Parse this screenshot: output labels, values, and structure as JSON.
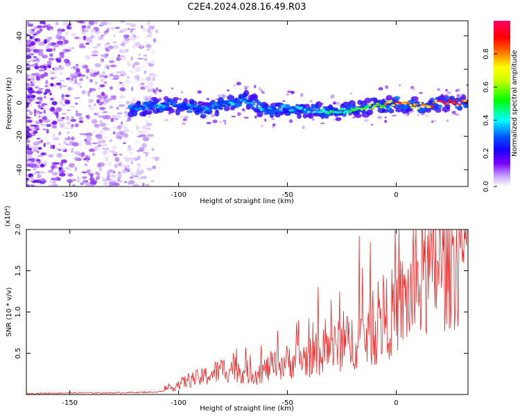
{
  "figure_title": "C2E4.2024.028.16.49.R03",
  "chart_data": [
    {
      "type": "heatmap",
      "title": "C2E4.2024.028.16.49.R03",
      "xlabel": "Height of straight line (km)",
      "ylabel": "Frequency (Hz)",
      "xlim": [
        -170,
        33
      ],
      "ylim": [
        -50,
        49
      ],
      "x_ticks": [
        -150,
        -100,
        -50,
        0
      ],
      "y_ticks": [
        -40,
        -20,
        0,
        20,
        40
      ],
      "x_tick_labels": [
        "-150",
        "-100",
        "-50",
        "0"
      ],
      "y_tick_labels": [
        "-40",
        "-20",
        "0",
        "20",
        "40"
      ],
      "colorbar": {
        "label": "Normalized spectral amplitude",
        "range": [
          0,
          1
        ],
        "ticks": [
          0.0,
          0.2,
          0.4,
          0.6,
          0.8
        ],
        "tick_labels": [
          "0.0",
          "0.2",
          "0.4",
          "0.6",
          "0.8"
        ],
        "colors": [
          "#ffffff",
          "#7a00ff",
          "#0000ff",
          "#00ffff",
          "#00ff00",
          "#ffff00",
          "#ff0000",
          "#ff0080"
        ]
      },
      "ridge": {
        "x": [
          -120,
          -110,
          -100,
          -90,
          -80,
          -70,
          -60,
          -50,
          -40,
          -30,
          -20,
          -10,
          0,
          10,
          20,
          33
        ],
        "y": [
          -3,
          -2,
          -1,
          -4,
          -2,
          2,
          -4,
          -3,
          -4,
          -6,
          -4,
          -2,
          0,
          -2,
          0,
          0
        ],
        "amplitude": [
          0.3,
          0.35,
          0.3,
          0.32,
          0.35,
          0.4,
          0.38,
          0.35,
          0.38,
          0.45,
          0.5,
          0.6,
          0.85,
          0.7,
          0.9,
          0.95
        ]
      },
      "noise_region_x": [
        -170,
        -110
      ]
    },
    {
      "type": "line",
      "title": "",
      "xlabel": "Height of straight line (km)",
      "ylabel": "SNR (10 * v/v)",
      "y_scale_label": "(x10⁴)",
      "xlim": [
        -170,
        33
      ],
      "ylim": [
        0,
        2.0
      ],
      "x_ticks": [
        -150,
        -100,
        -50,
        0
      ],
      "y_ticks": [
        0.5,
        1.0,
        1.5,
        2.0
      ],
      "x_tick_labels": [
        "-150",
        "-100",
        "-50",
        "0"
      ],
      "y_tick_labels": [
        "0.5",
        "1.0",
        "1.5",
        "2.0"
      ],
      "series": [
        {
          "color": "#ee2222",
          "x": [
            -170,
            -150,
            -130,
            -110,
            -105,
            -100,
            -95,
            -90,
            -85,
            -80,
            -75,
            -70,
            -65,
            -60,
            -55,
            -50,
            -45,
            -40,
            -35,
            -30,
            -25,
            -20,
            -15,
            -10,
            -5,
            0,
            5,
            10,
            15,
            20,
            25,
            33
          ],
          "y": [
            0.01,
            0.02,
            0.02,
            0.03,
            0.06,
            0.12,
            0.18,
            0.2,
            0.25,
            0.3,
            0.32,
            0.28,
            0.25,
            0.3,
            0.35,
            0.4,
            0.42,
            0.45,
            0.5,
            0.55,
            0.6,
            0.65,
            0.7,
            0.75,
            0.9,
            1.05,
            1.15,
            1.3,
            1.45,
            1.6,
            1.7,
            1.78
          ],
          "spikes": [
            {
              "x": -75,
              "y": 0.5
            },
            {
              "x": -62,
              "y": 0.6
            },
            {
              "x": -45,
              "y": 0.9
            },
            {
              "x": -36,
              "y": 1.3
            },
            {
              "x": -30,
              "y": 1.15
            },
            {
              "x": -26,
              "y": 1.25
            },
            {
              "x": -17,
              "y": 1.92
            },
            {
              "x": -12,
              "y": 1.85
            },
            {
              "x": -6,
              "y": 1.45
            },
            {
              "x": 8,
              "y": 2.0
            },
            {
              "x": 13,
              "y": 1.6
            }
          ]
        }
      ]
    }
  ]
}
